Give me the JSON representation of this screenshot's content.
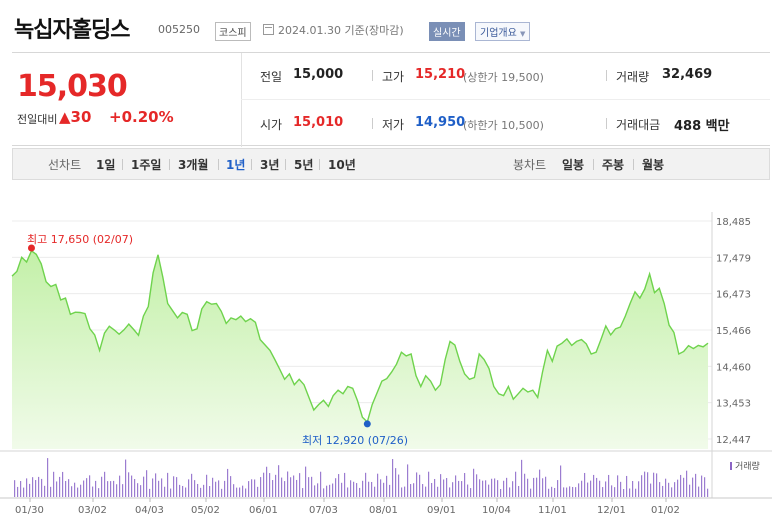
{
  "header": {
    "title": "녹십자홀딩스",
    "code": "005250",
    "market": "코스피",
    "date": "2024.01.30 기준(장마감)",
    "realtime_label": "실시간",
    "company_label": "기업개요",
    "company_arrow": "▼"
  },
  "summary": {
    "price": "15,030",
    "change_label": "전일대비",
    "change_amount": "▲30",
    "change_pct": "+0.20%",
    "prev_close_label": "전일",
    "prev_close": "15,000",
    "open_label": "시가",
    "open": "15,010",
    "high_label": "고가",
    "high": "15,210",
    "upper_limit": "(상한가 19,500)",
    "low_label": "저가",
    "low": "14,950",
    "lower_limit": "(하한가 10,500)",
    "volume_label": "거래량",
    "volume": "32,469",
    "amount_label": "거래대금",
    "amount": "488 백만"
  },
  "tabs": {
    "line_label": "선차트",
    "line_periods": [
      "1일",
      "1주일",
      "3개월",
      "1년",
      "3년",
      "5년",
      "10년"
    ],
    "active_period": "1년",
    "candle_label": "봉차트",
    "candle_periods": [
      "일봉",
      "주봉",
      "월봉"
    ]
  },
  "chart_data": {
    "type": "area",
    "title": "",
    "y_ticks": [
      "18,485",
      "17,479",
      "16,473",
      "15,466",
      "14,460",
      "13,453",
      "12,447"
    ],
    "ylim": [
      12447,
      18485
    ],
    "x_ticks": [
      "01/30",
      "03/02",
      "04/03",
      "05/02",
      "06/01",
      "07/03",
      "08/01",
      "09/01",
      "10/04",
      "11/01",
      "12/01",
      "01/02"
    ],
    "high_annotation": "최고 17,650 (02/07)",
    "low_annotation": "최저 12,920 (07/26)",
    "volume_label": "거래량",
    "grid": true,
    "series": [
      {
        "values": [
          16960,
          17090,
          17480,
          17350,
          17660,
          17560,
          17300,
          16800,
          16670,
          16730,
          16300,
          16350,
          15900,
          15960,
          15950,
          15920,
          15500,
          15330,
          14900,
          15380,
          15570,
          15470,
          15350,
          15470,
          15630,
          15480,
          15320,
          15850,
          16120,
          17050,
          17550,
          16920,
          16200,
          16000,
          15800,
          15950,
          15900,
          15450,
          15500,
          16050,
          16250,
          16180,
          16200,
          15980,
          15650,
          15800,
          15750,
          15850,
          15700,
          15780,
          15680,
          15200,
          15050,
          14900,
          14650,
          14380,
          14100,
          14250,
          13950,
          14100,
          13950,
          13600,
          13250,
          13400,
          13520,
          13350,
          13650,
          13800,
          13700,
          13900,
          13850,
          13500,
          13050,
          12920,
          13400,
          13720,
          14050,
          14120,
          14300,
          14520,
          14850,
          14750,
          14800,
          14200,
          13900,
          14200,
          14050,
          13800,
          13950,
          14650,
          15150,
          15050,
          14600,
          14250,
          14100,
          14150,
          14800,
          14650,
          14400,
          13900,
          13700,
          13650,
          13900,
          13550,
          13700,
          13850,
          13750,
          13800,
          13600,
          14300,
          14900,
          14600,
          15020,
          15100,
          15220,
          15040,
          15150,
          15200,
          15080,
          14800,
          14850,
          15200,
          15580,
          15330,
          15500,
          15550,
          15850,
          16200,
          16520,
          16350,
          16600,
          17020,
          16500,
          16620,
          16200,
          15600,
          15400,
          14800,
          14870,
          15030,
          14950,
          15040,
          15000,
          15100
        ]
      }
    ]
  }
}
